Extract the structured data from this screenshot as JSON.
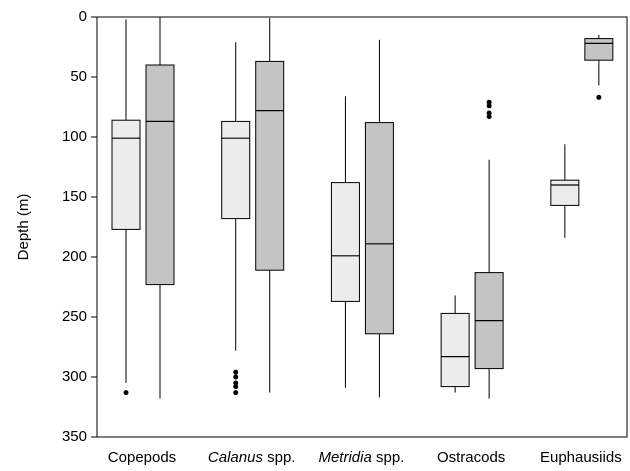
{
  "chart_data": {
    "type": "box",
    "y_label": "Depth (m)",
    "categories": [
      "Copepods",
      "Calanus spp.",
      "Metridia spp.",
      "Ostracods",
      "Euphausiids"
    ],
    "italic_first_word": [
      false,
      true,
      true,
      false,
      false
    ],
    "ylim": [
      0,
      350
    ],
    "y_inverted": true,
    "yticks": [
      0,
      50,
      100,
      150,
      200,
      250,
      300,
      350
    ],
    "series": [
      {
        "color": "#ececec",
        "min": [
          2,
          21,
          66,
          232,
          106
        ],
        "q1": [
          86,
          87,
          138,
          247,
          136
        ],
        "median": [
          101,
          101,
          199,
          283,
          140
        ],
        "q3": [
          177,
          168,
          237,
          308,
          157
        ],
        "max": [
          305,
          278,
          309,
          313,
          184
        ],
        "outliers": [
          [
            313
          ],
          [
            296,
            300,
            305,
            308,
            313
          ],
          [],
          [],
          []
        ]
      },
      {
        "color": "#c4c4c4",
        "min": [
          0,
          1,
          19,
          119,
          15
        ],
        "q1": [
          40,
          37,
          88,
          213,
          18
        ],
        "median": [
          87,
          78,
          189,
          253,
          22
        ],
        "q3": [
          223,
          211,
          264,
          293,
          36
        ],
        "max": [
          318,
          313,
          317,
          318,
          57
        ],
        "outliers": [
          [],
          [],
          [],
          [
            71,
            74,
            80,
            83
          ],
          [
            67
          ]
        ]
      }
    ]
  }
}
